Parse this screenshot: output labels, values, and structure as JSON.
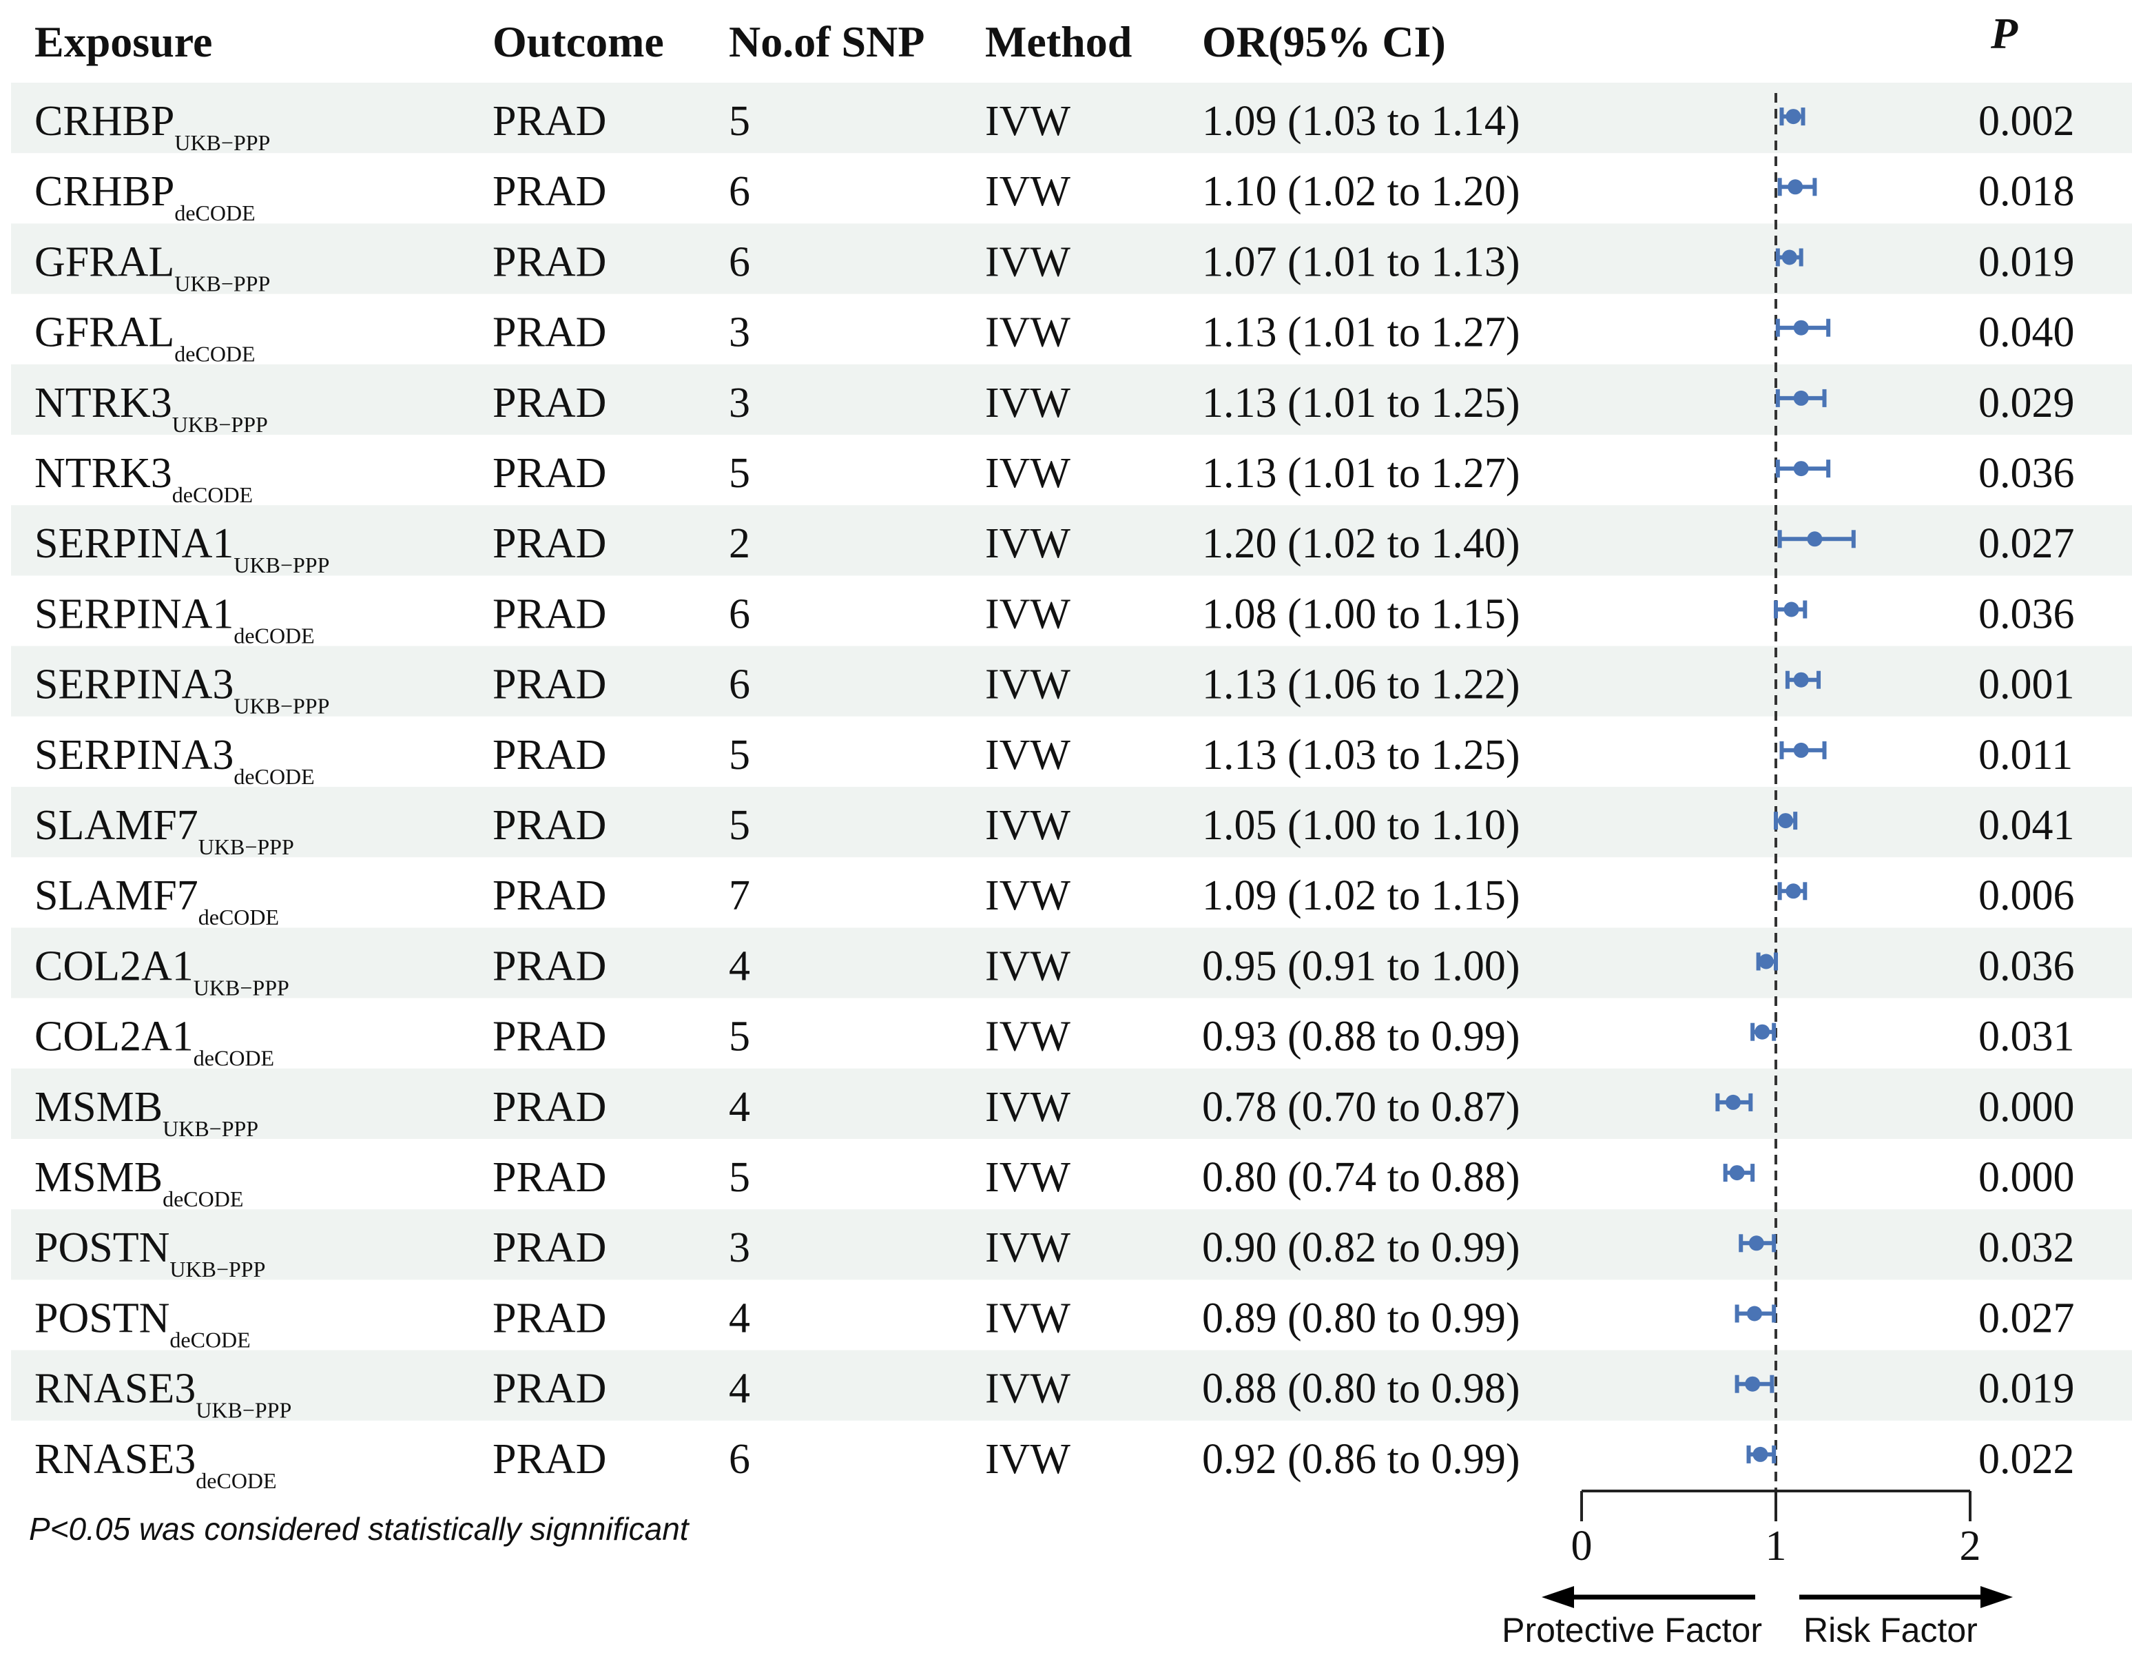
{
  "chart_data": {
    "type": "forest",
    "headers": {
      "exposure": "Exposure",
      "outcome": "Outcome",
      "snp": "No.of SNP",
      "method": "Method",
      "or_ci": "OR(95% CI)",
      "p": "P"
    },
    "rows": [
      {
        "name": "CRHBP",
        "sub": "UKB−PPP",
        "outcome": "PRAD",
        "snp": "5",
        "method": "IVW",
        "or_text": "1.09 (1.03 to 1.14)",
        "or": 1.09,
        "lo": 1.03,
        "hi": 1.14,
        "p": "0.002"
      },
      {
        "name": "CRHBP",
        "sub": "deCODE",
        "outcome": "PRAD",
        "snp": "6",
        "method": "IVW",
        "or_text": "1.10 (1.02 to 1.20)",
        "or": 1.1,
        "lo": 1.02,
        "hi": 1.2,
        "p": "0.018"
      },
      {
        "name": "GFRAL",
        "sub": "UKB−PPP",
        "outcome": "PRAD",
        "snp": "6",
        "method": "IVW",
        "or_text": "1.07 (1.01 to 1.13)",
        "or": 1.07,
        "lo": 1.01,
        "hi": 1.13,
        "p": "0.019"
      },
      {
        "name": "GFRAL",
        "sub": "deCODE",
        "outcome": "PRAD",
        "snp": "3",
        "method": "IVW",
        "or_text": "1.13 (1.01 to 1.27)",
        "or": 1.13,
        "lo": 1.01,
        "hi": 1.27,
        "p": "0.040"
      },
      {
        "name": "NTRK3",
        "sub": "UKB−PPP",
        "outcome": "PRAD",
        "snp": "3",
        "method": "IVW",
        "or_text": "1.13 (1.01 to 1.25)",
        "or": 1.13,
        "lo": 1.01,
        "hi": 1.25,
        "p": "0.029"
      },
      {
        "name": "NTRK3",
        "sub": "deCODE",
        "outcome": "PRAD",
        "snp": "5",
        "method": "IVW",
        "or_text": "1.13 (1.01 to 1.27)",
        "or": 1.13,
        "lo": 1.01,
        "hi": 1.27,
        "p": "0.036"
      },
      {
        "name": "SERPINA1",
        "sub": "UKB−PPP",
        "outcome": "PRAD",
        "snp": "2",
        "method": "IVW",
        "or_text": "1.20 (1.02 to 1.40)",
        "or": 1.2,
        "lo": 1.02,
        "hi": 1.4,
        "p": "0.027"
      },
      {
        "name": "SERPINA1",
        "sub": "deCODE",
        "outcome": "PRAD",
        "snp": "6",
        "method": "IVW",
        "or_text": "1.08 (1.00 to 1.15)",
        "or": 1.08,
        "lo": 1.0,
        "hi": 1.15,
        "p": "0.036"
      },
      {
        "name": "SERPINA3",
        "sub": "UKB−PPP",
        "outcome": "PRAD",
        "snp": "6",
        "method": "IVW",
        "or_text": "1.13 (1.06 to 1.22)",
        "or": 1.13,
        "lo": 1.06,
        "hi": 1.22,
        "p": "0.001"
      },
      {
        "name": "SERPINA3",
        "sub": "deCODE",
        "outcome": "PRAD",
        "snp": "5",
        "method": "IVW",
        "or_text": "1.13 (1.03 to 1.25)",
        "or": 1.13,
        "lo": 1.03,
        "hi": 1.25,
        "p": "0.011"
      },
      {
        "name": "SLAMF7",
        "sub": "UKB−PPP",
        "outcome": "PRAD",
        "snp": "5",
        "method": "IVW",
        "or_text": "1.05 (1.00 to 1.10)",
        "or": 1.05,
        "lo": 1.0,
        "hi": 1.1,
        "p": "0.041"
      },
      {
        "name": "SLAMF7",
        "sub": "deCODE",
        "outcome": "PRAD",
        "snp": "7",
        "method": "IVW",
        "or_text": "1.09 (1.02 to 1.15)",
        "or": 1.09,
        "lo": 1.02,
        "hi": 1.15,
        "p": "0.006"
      },
      {
        "name": "COL2A1",
        "sub": "UKB−PPP",
        "outcome": "PRAD",
        "snp": "4",
        "method": "IVW",
        "or_text": "0.95 (0.91 to 1.00)",
        "or": 0.95,
        "lo": 0.91,
        "hi": 1.0,
        "p": "0.036"
      },
      {
        "name": "COL2A1",
        "sub": "deCODE",
        "outcome": "PRAD",
        "snp": "5",
        "method": "IVW",
        "or_text": "0.93 (0.88 to 0.99)",
        "or": 0.93,
        "lo": 0.88,
        "hi": 0.99,
        "p": "0.031"
      },
      {
        "name": "MSMB",
        "sub": "UKB−PPP",
        "outcome": "PRAD",
        "snp": "4",
        "method": "IVW",
        "or_text": "0.78 (0.70 to 0.87)",
        "or": 0.78,
        "lo": 0.7,
        "hi": 0.87,
        "p": "0.000"
      },
      {
        "name": "MSMB",
        "sub": "deCODE",
        "outcome": "PRAD",
        "snp": "5",
        "method": "IVW",
        "or_text": "0.80 (0.74 to 0.88)",
        "or": 0.8,
        "lo": 0.74,
        "hi": 0.88,
        "p": "0.000"
      },
      {
        "name": "POSTN",
        "sub": "UKB−PPP",
        "outcome": "PRAD",
        "snp": "3",
        "method": "IVW",
        "or_text": "0.90 (0.82 to 0.99)",
        "or": 0.9,
        "lo": 0.82,
        "hi": 0.99,
        "p": "0.032"
      },
      {
        "name": "POSTN",
        "sub": "deCODE",
        "outcome": "PRAD",
        "snp": "4",
        "method": "IVW",
        "or_text": "0.89 (0.80 to 0.99)",
        "or": 0.89,
        "lo": 0.8,
        "hi": 0.99,
        "p": "0.027"
      },
      {
        "name": "RNASE3",
        "sub": "UKB−PPP",
        "outcome": "PRAD",
        "snp": "4",
        "method": "IVW",
        "or_text": "0.88 (0.80 to 0.98)",
        "or": 0.88,
        "lo": 0.8,
        "hi": 0.98,
        "p": "0.019"
      },
      {
        "name": "RNASE3",
        "sub": "deCODE",
        "outcome": "PRAD",
        "snp": "6",
        "method": "IVW",
        "or_text": "0.92 (0.86 to 0.99)",
        "or": 0.92,
        "lo": 0.86,
        "hi": 0.99,
        "p": "0.022"
      }
    ],
    "x_axis": {
      "ticks": [
        0,
        1,
        2
      ],
      "tick_labels": [
        "0",
        "1",
        "2"
      ],
      "reference_line": 1,
      "range": [
        0,
        2
      ]
    },
    "labels": {
      "left": "Protective Factor",
      "right": "Risk Factor"
    },
    "footnote": "P<0.05 was considered statistically signnificant",
    "colors": {
      "point": "#4a74b5",
      "stripe": "#eff3f1",
      "text": "#111111",
      "axis": "#222222"
    }
  }
}
